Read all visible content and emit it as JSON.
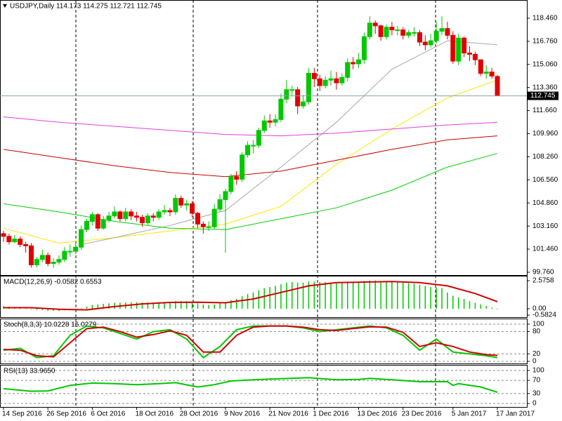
{
  "chart_data": [
    {
      "type": "candlestick",
      "title": "USDJPY,Daily  114.173 114.275 112.721 112.745",
      "categories": [
        "14 Sep 2016",
        null,
        null,
        null,
        null,
        null,
        null,
        null,
        "26 Sep 2016",
        null,
        null,
        null,
        null,
        null,
        null,
        null,
        "6 Oct 2016",
        null,
        null,
        null,
        null,
        null,
        null,
        null,
        "18 Oct 2016",
        null,
        null,
        null,
        null,
        null,
        null,
        null,
        "28 Oct 2016",
        null,
        null,
        null,
        null,
        null,
        null,
        null,
        "9 Nov 2016",
        null,
        null,
        null,
        null,
        null,
        null,
        null,
        "21 Nov 2016",
        null,
        null,
        null,
        null,
        null,
        null,
        null,
        "1 Dec 2016",
        null,
        null,
        null,
        null,
        null,
        null,
        null,
        "13 Dec 2016",
        null,
        null,
        null,
        null,
        null,
        null,
        null,
        "23 Dec 2016",
        null,
        null,
        null,
        null,
        null,
        null,
        null,
        null,
        "5 Jan 2017",
        null,
        null,
        null,
        null,
        null,
        null,
        null,
        "17 Jan 2017"
      ],
      "open": [
        102.6,
        102.4,
        102.0,
        102.2,
        101.8,
        101.7,
        100.3,
        100.7,
        101.0,
        100.4,
        100.5,
        100.7,
        101.3,
        101.3,
        101.6,
        102.9,
        103.5,
        104.0,
        103.0,
        103.6,
        103.9,
        104.2,
        103.7,
        104.2,
        103.9,
        103.8,
        103.4,
        103.9,
        103.8,
        104.2,
        104.3,
        104.2,
        105.2,
        104.7,
        104.8,
        104.1,
        103.3,
        103.1,
        103.1,
        104.4,
        105.1,
        105.7,
        106.8,
        106.6,
        108.4,
        109.1,
        109.1,
        110.2,
        110.9,
        110.8,
        111.0,
        112.5,
        113.2,
        113.2,
        112.0,
        112.3,
        114.4,
        114.0,
        113.5,
        113.9,
        114.0,
        113.7,
        114.1,
        115.2,
        115.1,
        115.4,
        117.1,
        118.1,
        117.9,
        117.1,
        117.8,
        117.6,
        117.6,
        117.2,
        117.4,
        117.4,
        116.7,
        116.5,
        116.8,
        117.5,
        117.7,
        117.2,
        115.3,
        117.0,
        115.9,
        115.8,
        115.4,
        114.4,
        114.5,
        114.173
      ],
      "high": [
        102.8,
        102.6,
        102.5,
        102.4,
        102.0,
        101.9,
        100.9,
        101.4,
        101.2,
        100.8,
        101.0,
        101.6,
        101.8,
        101.9,
        103.2,
        103.7,
        104.2,
        104.1,
        103.9,
        104.2,
        104.6,
        104.3,
        104.5,
        104.4,
        104.2,
        104.0,
        104.1,
        104.1,
        104.4,
        104.7,
        104.5,
        105.5,
        105.4,
        105.1,
        105.0,
        104.2,
        103.5,
        103.5,
        104.8,
        105.5,
        105.9,
        107.0,
        107.2,
        108.6,
        109.4,
        109.5,
        110.4,
        111.3,
        111.4,
        111.4,
        112.9,
        113.9,
        113.5,
        113.4,
        112.8,
        114.8,
        114.8,
        114.3,
        114.2,
        114.6,
        114.5,
        114.4,
        115.5,
        115.6,
        115.9,
        117.4,
        118.6,
        118.3,
        118.0,
        118.0,
        118.2,
        117.9,
        117.8,
        117.6,
        117.8,
        117.6,
        117.2,
        117.3,
        118.2,
        118.6,
        118.2,
        117.5,
        117.3,
        117.1,
        116.4,
        116.0,
        115.4,
        115.0,
        114.8,
        114.275
      ],
      "low": [
        102.0,
        101.8,
        101.9,
        101.6,
        101.2,
        100.1,
        100.1,
        100.5,
        100.2,
        100.1,
        100.3,
        100.5,
        100.9,
        101.1,
        101.4,
        102.7,
        103.2,
        102.8,
        102.9,
        103.4,
        103.7,
        103.5,
        103.5,
        103.6,
        103.5,
        103.1,
        103.2,
        103.5,
        103.6,
        104.0,
        103.9,
        104.0,
        104.5,
        104.3,
        103.8,
        103.0,
        102.6,
        102.8,
        102.9,
        104.2,
        101.2,
        105.5,
        106.2,
        106.4,
        108.2,
        108.5,
        108.9,
        110.0,
        110.4,
        110.5,
        110.8,
        112.2,
        112.7,
        111.4,
        111.8,
        112.1,
        113.4,
        113.1,
        113.3,
        113.5,
        113.2,
        113.5,
        113.8,
        114.7,
        114.8,
        115.1,
        116.9,
        117.3,
        116.8,
        116.9,
        117.2,
        117.2,
        116.9,
        117.0,
        117.1,
        116.4,
        116.1,
        116.3,
        116.6,
        117.2,
        116.9,
        115.1,
        115.0,
        115.6,
        115.3,
        115.0,
        114.2,
        114.0,
        114.0,
        112.721
      ],
      "close": [
        102.4,
        102.0,
        102.2,
        101.8,
        101.7,
        100.3,
        100.7,
        101.0,
        100.4,
        100.5,
        100.7,
        101.3,
        101.3,
        101.6,
        102.9,
        103.5,
        104.0,
        103.0,
        103.6,
        103.9,
        104.2,
        103.7,
        104.2,
        103.9,
        103.8,
        103.4,
        103.9,
        103.8,
        104.2,
        104.3,
        104.2,
        105.2,
        104.7,
        104.8,
        104.1,
        103.3,
        103.1,
        103.1,
        104.4,
        105.1,
        105.7,
        106.8,
        106.6,
        108.4,
        109.1,
        109.1,
        110.2,
        110.9,
        110.8,
        111.0,
        112.5,
        113.2,
        113.2,
        112.0,
        112.3,
        114.4,
        114.0,
        113.5,
        113.9,
        114.0,
        113.7,
        114.1,
        115.2,
        115.1,
        115.4,
        117.1,
        118.1,
        117.9,
        117.1,
        117.8,
        117.6,
        117.6,
        117.2,
        117.4,
        117.4,
        116.7,
        116.5,
        116.8,
        117.5,
        117.7,
        117.2,
        115.3,
        117.0,
        115.9,
        115.8,
        115.4,
        114.4,
        114.5,
        114.2,
        112.745
      ],
      "up_color": "#00c800",
      "down_color": "#e00000",
      "series": [
        {
          "color": "#ffe600",
          "x": [
            0,
            10,
            20,
            30,
            40,
            50,
            60,
            70,
            80,
            89
          ],
          "values": [
            103.0,
            101.9,
            102.3,
            102.8,
            103.3,
            104.6,
            107.7,
            110.3,
            112.6,
            113.9
          ]
        },
        {
          "color": "#a8a8a8",
          "x": [
            14,
            20,
            30,
            40,
            50,
            60,
            70,
            80,
            89
          ],
          "values": [
            101.8,
            102.3,
            103.2,
            104.3,
            107.5,
            110.8,
            114.7,
            116.8,
            116.5
          ]
        },
        {
          "color": "#e040e0",
          "x": [
            0,
            10,
            20,
            30,
            40,
            50,
            60,
            70,
            80,
            89
          ],
          "values": [
            111.2,
            110.8,
            110.5,
            110.2,
            109.9,
            109.8,
            110.0,
            110.3,
            110.6,
            110.8
          ]
        },
        {
          "color": "#c80000",
          "x": [
            0,
            10,
            20,
            30,
            40,
            50,
            60,
            70,
            80,
            89
          ],
          "values": [
            108.8,
            108.2,
            107.6,
            107.1,
            106.8,
            107.2,
            108.0,
            108.8,
            109.5,
            109.8
          ]
        },
        {
          "color": "#00d000",
          "x": [
            0,
            10,
            20,
            30,
            40,
            50,
            60,
            70,
            80,
            89
          ],
          "values": [
            104.8,
            104.2,
            103.5,
            103.0,
            102.9,
            103.7,
            104.5,
            105.8,
            107.5,
            108.5
          ]
        }
      ],
      "ylim": [
        99.55,
        119.8
      ],
      "yticks": [
        {
          "value": 118.46,
          "label": "118.460"
        },
        {
          "value": 116.76,
          "label": "116.760"
        },
        {
          "value": 115.06,
          "label": "115.060"
        },
        {
          "value": 113.36,
          "label": "113.360"
        },
        {
          "value": 111.66,
          "label": "111.660"
        },
        {
          "value": 109.96,
          "label": "109.960"
        },
        {
          "value": 108.26,
          "label": "108.260"
        },
        {
          "value": 106.56,
          "label": "106.560"
        },
        {
          "value": 104.86,
          "label": "104.860"
        },
        {
          "value": 103.16,
          "label": "103.160"
        },
        {
          "value": 101.46,
          "label": "101.460"
        },
        {
          "value": 99.76,
          "label": "99.760"
        }
      ],
      "grid": false
    },
    {
      "type": "macd",
      "title": "MACD(12,26,9) -0.0582 0.6553",
      "color": "#00c800",
      "values": [
        0.25,
        0.2,
        0.15,
        0.1,
        0.05,
        -0.05,
        -0.1,
        -0.12,
        -0.18,
        -0.2,
        -0.2,
        -0.15,
        -0.12,
        -0.08,
        0.05,
        0.2,
        0.35,
        0.4,
        0.45,
        0.5,
        0.55,
        0.55,
        0.58,
        0.6,
        0.6,
        0.58,
        0.58,
        0.58,
        0.6,
        0.62,
        0.62,
        0.7,
        0.7,
        0.7,
        0.62,
        0.5,
        0.4,
        0.35,
        0.4,
        0.5,
        0.6,
        0.8,
        0.9,
        1.15,
        1.35,
        1.5,
        1.7,
        1.9,
        2.0,
        2.1,
        2.25,
        2.4,
        2.45,
        2.4,
        2.4,
        2.5,
        2.5,
        2.45,
        2.45,
        2.4,
        2.35,
        2.35,
        2.4,
        2.4,
        2.45,
        2.55,
        2.6,
        2.6,
        2.55,
        2.55,
        2.5,
        2.45,
        2.4,
        2.35,
        2.3,
        2.2,
        2.1,
        2.0,
        1.95,
        1.9,
        1.5,
        1.2,
        1.05,
        0.9,
        0.7,
        0.55,
        0.4,
        0.25,
        0.1,
        -0.0582
      ],
      "series": [
        {
          "color": "#d00000",
          "x": [
            0,
            5,
            10,
            15,
            20,
            25,
            30,
            35,
            40,
            45,
            50,
            55,
            60,
            65,
            70,
            75,
            80,
            85,
            89
          ],
          "values": [
            0.1,
            0.1,
            -0.05,
            -0.1,
            0.2,
            0.45,
            0.58,
            0.6,
            0.55,
            0.9,
            1.5,
            2.1,
            2.4,
            2.45,
            2.5,
            2.4,
            2.1,
            1.4,
            0.6553
          ]
        }
      ],
      "ylim": [
        -0.77,
        3.03
      ],
      "yticks": [
        {
          "value": 2.5758,
          "label": "2.5758"
        },
        {
          "value": 0,
          "label": "0.00"
        },
        {
          "value": -0.5824,
          "label": "-0.5824"
        }
      ],
      "grid": false
    },
    {
      "type": "line",
      "title": "Stoch(8,3,3) 10.0228 16.0279",
      "series": [
        {
          "color": "#00c800",
          "x": [
            0,
            3,
            6,
            9,
            12,
            15,
            18,
            21,
            24,
            27,
            30,
            33,
            36,
            39,
            42,
            45,
            48,
            51,
            54,
            57,
            60,
            63,
            66,
            69,
            72,
            75,
            78,
            81,
            84,
            87,
            89
          ],
          "values": [
            30,
            35,
            10,
            15,
            70,
            95,
            90,
            75,
            60,
            80,
            85,
            60,
            10,
            40,
            85,
            95,
            95,
            95,
            90,
            80,
            85,
            90,
            95,
            90,
            70,
            30,
            60,
            25,
            20,
            15,
            10.0228
          ]
        },
        {
          "color": "#d00000",
          "x": [
            0,
            3,
            6,
            9,
            12,
            15,
            18,
            21,
            24,
            27,
            30,
            33,
            36,
            39,
            42,
            45,
            48,
            51,
            54,
            57,
            60,
            63,
            66,
            69,
            72,
            75,
            78,
            81,
            84,
            87,
            89
          ],
          "values": [
            32,
            30,
            15,
            12,
            50,
            88,
            92,
            80,
            65,
            72,
            82,
            70,
            25,
            25,
            70,
            92,
            95,
            95,
            92,
            85,
            83,
            88,
            93,
            92,
            78,
            40,
            50,
            40,
            25,
            18,
            16.0279
          ]
        }
      ],
      "ylim": [
        -5.7,
        115
      ],
      "yticks": [
        100,
        80,
        20,
        0
      ],
      "grid": true
    },
    {
      "type": "line",
      "title": "RSI(13) 33.9650",
      "series": [
        {
          "color": "#00c800",
          "x": [
            0,
            5,
            8,
            12,
            16,
            20,
            24,
            28,
            31,
            35,
            38,
            41,
            45,
            50,
            55,
            60,
            64,
            66,
            70,
            75,
            80,
            81,
            82,
            86,
            89
          ],
          "values": [
            45,
            37,
            38,
            55,
            62,
            60,
            57,
            60,
            63,
            50,
            57,
            68,
            72,
            75,
            78,
            72,
            73,
            76,
            72,
            66,
            66,
            55,
            60,
            50,
            33.965
          ]
        }
      ],
      "ylim": [
        -10.6,
        117
      ],
      "yticks": [
        100,
        70,
        30,
        0
      ],
      "grid": true
    }
  ]
}
